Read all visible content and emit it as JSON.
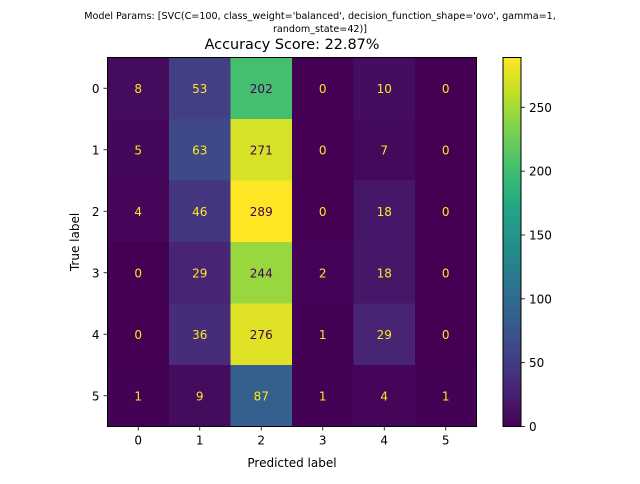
{
  "chart_data": {
    "type": "heatmap",
    "suptitle_lines": [
      "Model Params: [SVC(C=100, class_weight='balanced', decision_function_shape='ovo', gamma=1,",
      "random_state=42)]"
    ],
    "title": "Accuracy Score: 22.87%",
    "xlabel": "Predicted label",
    "ylabel": "True label",
    "x_categories": [
      "0",
      "1",
      "2",
      "3",
      "4",
      "5"
    ],
    "y_categories": [
      "0",
      "1",
      "2",
      "3",
      "4",
      "5"
    ],
    "matrix": [
      [
        8,
        53,
        202,
        0,
        10,
        0
      ],
      [
        5,
        63,
        271,
        0,
        7,
        0
      ],
      [
        4,
        46,
        289,
        0,
        18,
        0
      ],
      [
        0,
        29,
        244,
        2,
        18,
        0
      ],
      [
        0,
        36,
        276,
        1,
        29,
        0
      ],
      [
        1,
        9,
        87,
        1,
        4,
        1
      ]
    ],
    "colormap": "viridis",
    "vmin": 0,
    "vmax": 289,
    "colorbar_ticks": [
      0,
      50,
      100,
      150,
      200,
      250
    ],
    "text_color_light": "#fde725",
    "text_color_dark": "#440154",
    "grid": false
  }
}
